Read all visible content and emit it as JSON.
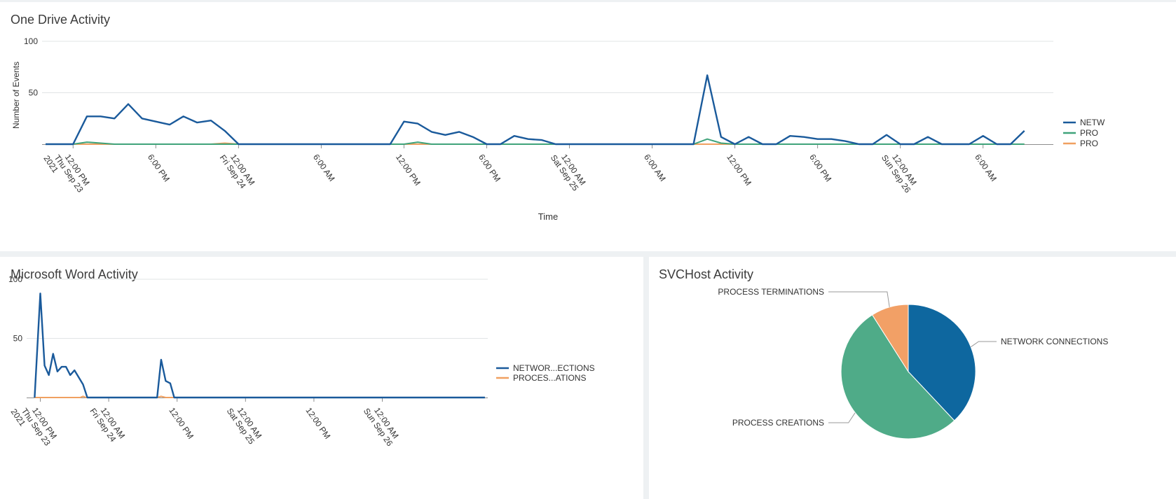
{
  "panels": {
    "onedrive_title": "One Drive Activity",
    "word_title": "Microsoft Word Activity",
    "svchost_title": "SVCHost Activity"
  },
  "colors": {
    "network": "#1a5a9b",
    "creations": "#3fa37a",
    "terminations": "#f0a060",
    "pie_network": "#0e679f",
    "pie_creations": "#4fab88",
    "pie_terminations": "#f2a066",
    "grid": "#e1e4e6",
    "axis": "#8e8e8e"
  },
  "chart_data": [
    {
      "id": "onedrive",
      "type": "line",
      "title": "One Drive Activity",
      "xlabel": "Time",
      "ylabel": "Number of Events",
      "ylim": [
        0,
        100
      ],
      "yticks": [
        "100",
        "50"
      ],
      "grid": true,
      "legend": "right",
      "x_tick_labels": [
        [
          "12:00 PM",
          "Thu Sep 23",
          "2021"
        ],
        [
          "6:00 PM"
        ],
        [
          "12:00 AM",
          "Fri Sep 24"
        ],
        [
          "6:00 AM"
        ],
        [
          "12:00 PM"
        ],
        [
          "6:00 PM"
        ],
        [
          "12:00 AM",
          "Sat Sep 25"
        ],
        [
          "6:00 AM"
        ],
        [
          "12:00 PM"
        ],
        [
          "6:00 PM"
        ],
        [
          "12:00 AM",
          "Sun Sep 26"
        ],
        [
          "6:00 AM"
        ]
      ],
      "x_tick_hours": [
        12,
        18,
        24,
        30,
        36,
        42,
        48,
        54,
        60,
        66,
        72,
        78
      ],
      "x_hours_range": [
        9.85,
        83.1
      ],
      "series": [
        {
          "name": "NETW",
          "color_key": "network",
          "points": [
            [
              10,
              0
            ],
            [
              11,
              0
            ],
            [
              12,
              0
            ],
            [
              13,
              27
            ],
            [
              14,
              27
            ],
            [
              15,
              25
            ],
            [
              16,
              39
            ],
            [
              17,
              25
            ],
            [
              18,
              22
            ],
            [
              19,
              19
            ],
            [
              20,
              27
            ],
            [
              21,
              21
            ],
            [
              22,
              23
            ],
            [
              23,
              13
            ],
            [
              24,
              0
            ],
            [
              25,
              0
            ],
            [
              26,
              0
            ],
            [
              27,
              0
            ],
            [
              28,
              0
            ],
            [
              29,
              0
            ],
            [
              30,
              0
            ],
            [
              31,
              0
            ],
            [
              32,
              0
            ],
            [
              33,
              0
            ],
            [
              34,
              0
            ],
            [
              35,
              0
            ],
            [
              36,
              22
            ],
            [
              37,
              20
            ],
            [
              38,
              12
            ],
            [
              39,
              9
            ],
            [
              40,
              12
            ],
            [
              41,
              7
            ],
            [
              42,
              0
            ],
            [
              43,
              0
            ],
            [
              44,
              8
            ],
            [
              45,
              5
            ],
            [
              46,
              4
            ],
            [
              47,
              0
            ],
            [
              48,
              0
            ],
            [
              49,
              0
            ],
            [
              50,
              0
            ],
            [
              51,
              0
            ],
            [
              52,
              0
            ],
            [
              53,
              0
            ],
            [
              54,
              0
            ],
            [
              55,
              0
            ],
            [
              56,
              0
            ],
            [
              57,
              0
            ],
            [
              58,
              67
            ],
            [
              59,
              7
            ],
            [
              60,
              0
            ],
            [
              61,
              7
            ],
            [
              62,
              0
            ],
            [
              63,
              0
            ],
            [
              64,
              8
            ],
            [
              65,
              7
            ],
            [
              66,
              5
            ],
            [
              67,
              5
            ],
            [
              68,
              3
            ],
            [
              69,
              0
            ],
            [
              70,
              0
            ],
            [
              71,
              9
            ],
            [
              72,
              0
            ],
            [
              73,
              0
            ],
            [
              74,
              7
            ],
            [
              75,
              0
            ],
            [
              76,
              0
            ],
            [
              77,
              0
            ],
            [
              78,
              8
            ],
            [
              79,
              0
            ],
            [
              80,
              0
            ],
            [
              81,
              13
            ]
          ]
        },
        {
          "name": "PRO",
          "color_key": "creations",
          "points": [
            [
              10,
              0
            ],
            [
              12,
              0
            ],
            [
              13,
              2
            ],
            [
              14,
              1
            ],
            [
              15,
              0
            ],
            [
              24,
              0
            ],
            [
              36,
              0
            ],
            [
              37,
              2
            ],
            [
              38,
              0
            ],
            [
              57,
              0
            ],
            [
              58,
              5
            ],
            [
              59,
              1
            ],
            [
              60,
              0
            ],
            [
              81,
              0
            ]
          ]
        },
        {
          "name": "PRO",
          "color_key": "terminations",
          "points": [
            [
              10,
              0
            ],
            [
              22,
              0
            ],
            [
              23,
              1
            ],
            [
              24,
              0
            ],
            [
              81,
              0
            ]
          ]
        }
      ]
    },
    {
      "id": "word",
      "type": "line",
      "title": "Microsoft Word Activity",
      "xlabel": "",
      "ylabel": "",
      "ylim": [
        0,
        100
      ],
      "yticks": [
        "100",
        "50"
      ],
      "grid": true,
      "legend": "right",
      "x_tick_labels": [
        [
          "12:00 PM",
          "Thu Sep 23",
          "2021"
        ],
        [
          "12:00 AM",
          "Fri Sep 24"
        ],
        [
          "12:00 PM"
        ],
        [
          "12:00 AM",
          "Sat Sep 25"
        ],
        [
          "12:00 PM"
        ],
        [
          "12:00 AM",
          "Sun Sep 26"
        ]
      ],
      "x_tick_hours": [
        12,
        24,
        36,
        48,
        60,
        72
      ],
      "x_hours_range": [
        9.85,
        90.5
      ],
      "series": [
        {
          "name": "NETWOR...ECTIONS",
          "color_key": "network",
          "points": [
            [
              11,
              0
            ],
            [
              12,
              88
            ],
            [
              12.75,
              27
            ],
            [
              13.5,
              19
            ],
            [
              14.25,
              37
            ],
            [
              15,
              22
            ],
            [
              15.75,
              26
            ],
            [
              16.5,
              26
            ],
            [
              17.25,
              19
            ],
            [
              18,
              23
            ],
            [
              18.75,
              17
            ],
            [
              19.5,
              11
            ],
            [
              20.25,
              0
            ],
            [
              32.5,
              0
            ],
            [
              33.2,
              32
            ],
            [
              34,
              14
            ],
            [
              34.8,
              12
            ],
            [
              35.5,
              0
            ],
            [
              90,
              0
            ]
          ]
        },
        {
          "name": "PROCES...ATIONS",
          "color_key": "terminations",
          "points": [
            [
              11,
              0
            ],
            [
              19,
              0
            ],
            [
              19.5,
              1
            ],
            [
              20,
              0
            ],
            [
              32.5,
              0
            ],
            [
              33.2,
              1
            ],
            [
              34,
              0
            ],
            [
              90,
              0
            ]
          ]
        }
      ]
    },
    {
      "id": "svchost",
      "type": "pie",
      "title": "SVCHost Activity",
      "slices": [
        {
          "label": "NETWORK CONNECTIONS",
          "value": 38,
          "color_key": "pie_network"
        },
        {
          "label": "PROCESS CREATIONS",
          "value": 53,
          "color_key": "pie_creations"
        },
        {
          "label": "PROCESS TERMINATIONS",
          "value": 9,
          "color_key": "pie_terminations"
        }
      ]
    }
  ]
}
